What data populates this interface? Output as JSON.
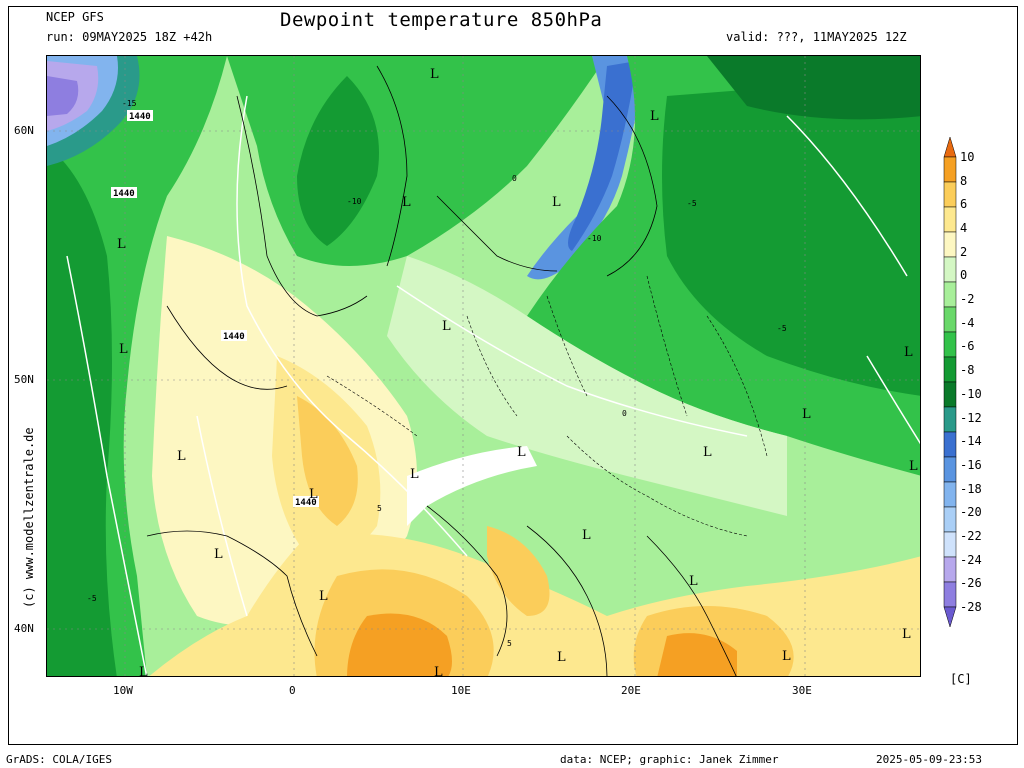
{
  "header": {
    "model": "NCEP GFS",
    "run": "run: 09MAY2025 18Z +42h",
    "title": "Dewpoint temperature 850hPa",
    "valid": "valid: ???, 11MAY2025 12Z"
  },
  "footer": {
    "left": "GrADS: COLA/IGES",
    "center": "data: NCEP; graphic: Janek Zimmer",
    "right": "2025-05-09-23:53"
  },
  "credit": "(c) www.modellzentrale.de",
  "unit": "[C]",
  "axes": {
    "lat_labels": [
      "60N",
      "50N",
      "40N"
    ],
    "lon_labels": [
      "10W",
      "0",
      "10E",
      "20E",
      "30E"
    ]
  },
  "colorbar": {
    "labels": [
      "10",
      "8",
      "6",
      "4",
      "2",
      "0",
      "-2",
      "-4",
      "-6",
      "-8",
      "-10",
      "-12",
      "-14",
      "-16",
      "-18",
      "-20",
      "-22",
      "-24",
      "-26",
      "-28"
    ],
    "colors": [
      "#e86a10",
      "#f5a023",
      "#fbcd5a",
      "#fde88f",
      "#fdf7c2",
      "#d4f7c4",
      "#a8ef9a",
      "#6ad86a",
      "#33c24a",
      "#149b33",
      "#0a7a2a",
      "#2a9a8a",
      "#3a70d0",
      "#5a94e0",
      "#82b4ee",
      "#aacff6",
      "#cfe2fb",
      "#b7a8ec",
      "#8e7ee0",
      "#6a5ad0"
    ]
  },
  "pressure_labels": [
    "1440",
    "1440",
    "1440",
    "1440"
  ],
  "low_marker": "L",
  "dewpoint_labels": [
    "-15",
    "-10",
    "-5",
    "0",
    "5"
  ]
}
